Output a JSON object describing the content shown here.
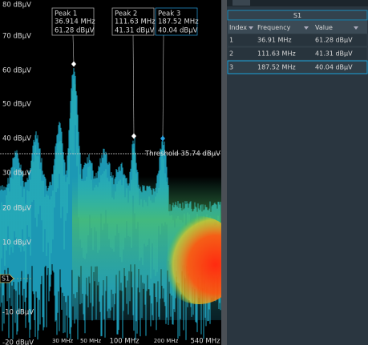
{
  "y_axis_labels": [
    "80 dBµV",
    "70 dBµV",
    "60 dBµV",
    "50 dBµV",
    "40 dBµV",
    "30 dBµV",
    "20 dBµV",
    "10 dBµV",
    "-10 dBµV",
    "-20 dBµV"
  ],
  "x_axis_labels": [
    "30 MHz",
    "50 MHz",
    "100 MHz",
    "200 MHz",
    "540 MHz"
  ],
  "peaks": [
    {
      "label": "Peak 1",
      "frequency": "36.914 MHz",
      "value": "61.28 dBµV"
    },
    {
      "label": "Peak 2",
      "frequency": "111.63 MHz",
      "value": "41.31 dBµV"
    },
    {
      "label": "Peak 3",
      "frequency": "187.52 MHz",
      "value": "40.04 dBµV"
    }
  ],
  "threshold": "Threshold 35.74 dBµV",
  "waveform_label": "S1",
  "table": {
    "title": "S1",
    "columns": [
      "Index",
      "Frequency",
      "Value"
    ],
    "rows": [
      [
        "1",
        "36.91 MHz",
        "61.28 dBµV"
      ],
      [
        "2",
        "111.63 MHz",
        "41.31 dBµV"
      ],
      [
        "3",
        "187.52 MHz",
        "40.04 dBµV"
      ]
    ]
  }
}
